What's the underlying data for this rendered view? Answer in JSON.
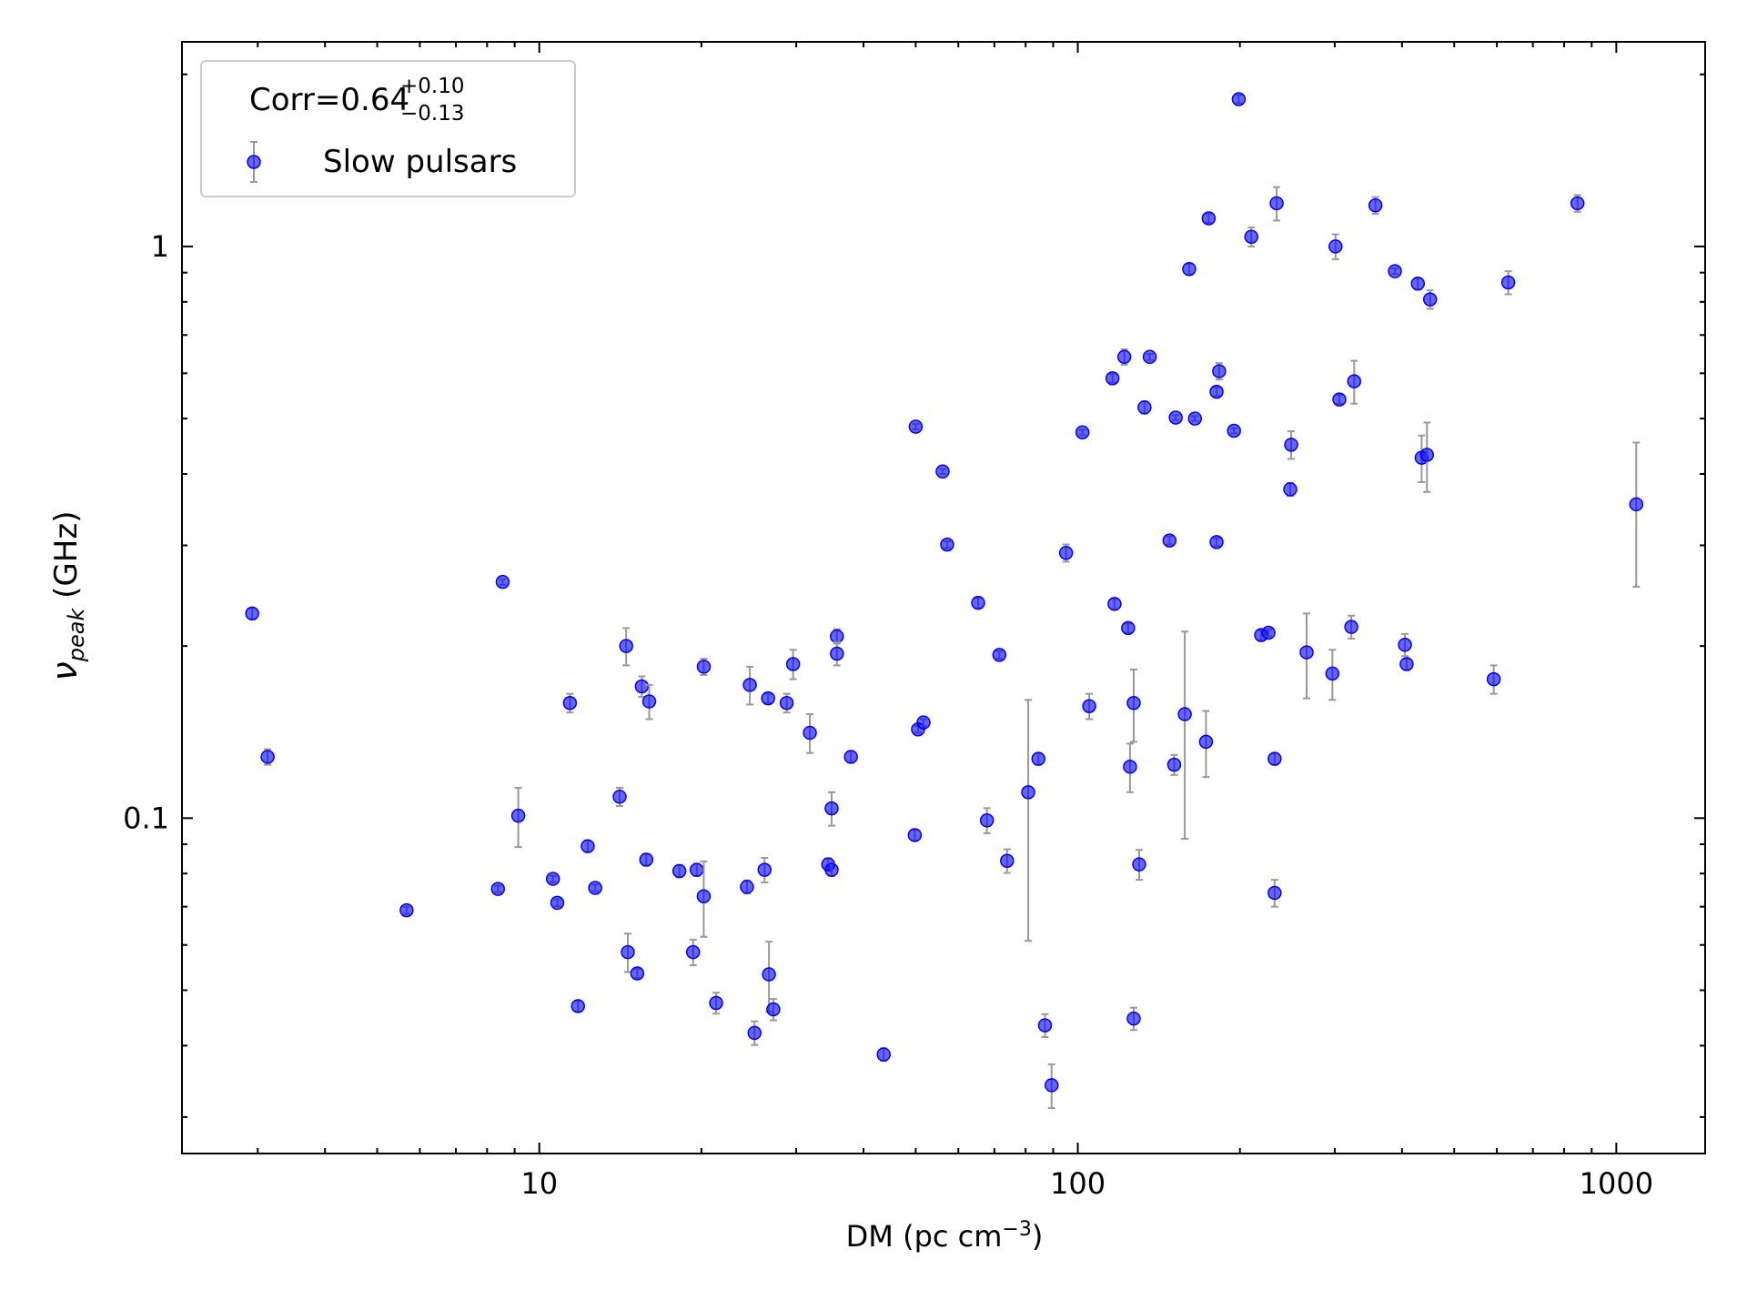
{
  "chart_data": {
    "type": "scatter",
    "xlabel": "DM (pc cm",
    "xlabel_sup": "−3",
    "xlabel_end": ")",
    "ylabel": "ν",
    "ylabel_sub": "peak",
    "ylabel_end": " (GHz)",
    "xscale": "log",
    "yscale": "log",
    "xlim": [
      2.17,
      1462
    ],
    "ylim": [
      0.0259,
      2.28
    ],
    "xticks": [
      10,
      100,
      1000
    ],
    "yticks": [
      0.1,
      1
    ],
    "xminorticks": [
      3,
      4,
      5,
      6,
      7,
      8,
      9,
      20,
      30,
      40,
      50,
      60,
      70,
      80,
      90,
      200,
      300,
      400,
      500,
      600,
      700,
      800,
      900
    ],
    "yminorticks": [
      0.03,
      0.04,
      0.05,
      0.06,
      0.07,
      0.08,
      0.09,
      0.2,
      0.3,
      0.4,
      0.5,
      0.6,
      0.7,
      0.8,
      0.9,
      2
    ],
    "legend": {
      "title": "Corr=0.64",
      "title_sup": "+0.10",
      "title_sub": "−0.13",
      "loc": "upper left"
    },
    "series": [
      {
        "name": "Slow pulsars",
        "color": "#0000ff",
        "errorcolor": "#999999",
        "x": [
          2.93,
          3.13,
          5.67,
          8.38,
          8.55,
          9.14,
          10.6,
          10.8,
          11.4,
          11.8,
          12.3,
          12.7,
          14.1,
          14.5,
          14.6,
          15.2,
          15.5,
          15.8,
          16.0,
          18.2,
          19.3,
          19.6,
          20.2,
          20.2,
          21.3,
          24.3,
          24.6,
          25.1,
          26.2,
          26.6,
          26.7,
          27.2,
          28.8,
          29.6,
          31.8,
          34.4,
          34.9,
          34.9,
          35.7,
          35.7,
          37.9,
          43.6,
          49.8,
          50.0,
          50.5,
          51.7,
          56.1,
          57.2,
          65.3,
          67.8,
          71.5,
          73.9,
          80.9,
          84.5,
          86.9,
          89.4,
          95.1,
          102,
          105,
          116,
          117,
          122,
          124,
          125,
          127,
          127,
          130,
          133,
          136,
          148,
          151,
          152,
          158,
          161,
          165,
          173,
          175,
          181,
          181,
          183,
          195,
          199,
          210,
          219,
          226,
          232,
          232,
          234,
          248,
          249,
          266,
          297,
          301,
          306,
          322,
          326,
          357,
          388,
          405,
          408,
          428,
          435,
          445,
          451,
          592,
          630,
          847,
          1089
        ],
        "values": [
          0.228,
          0.128,
          0.069,
          0.0752,
          0.259,
          0.101,
          0.0783,
          0.0711,
          0.159,
          0.0469,
          0.0893,
          0.0755,
          0.109,
          0.2,
          0.0583,
          0.0535,
          0.17,
          0.0846,
          0.16,
          0.0808,
          0.0583,
          0.0812,
          0.184,
          0.073,
          0.0475,
          0.0758,
          0.171,
          0.0421,
          0.0812,
          0.162,
          0.0533,
          0.0463,
          0.159,
          0.186,
          0.141,
          0.083,
          0.0812,
          0.104,
          0.208,
          0.194,
          0.128,
          0.0386,
          0.0934,
          0.484,
          0.143,
          0.147,
          0.404,
          0.301,
          0.238,
          0.0991,
          0.193,
          0.0842,
          0.111,
          0.127,
          0.0434,
          0.0341,
          0.291,
          0.473,
          0.157,
          0.588,
          0.237,
          0.641,
          0.215,
          0.123,
          0.159,
          0.0446,
          0.083,
          0.523,
          0.641,
          0.306,
          0.124,
          0.502,
          0.152,
          0.913,
          0.5,
          0.136,
          1.12,
          0.557,
          0.304,
          0.605,
          0.476,
          1.81,
          1.04,
          0.209,
          0.211,
          0.127,
          0.074,
          1.19,
          0.376,
          0.45,
          0.195,
          0.179,
          1.0,
          0.54,
          0.216,
          0.581,
          1.18,
          0.905,
          0.201,
          0.186,
          0.861,
          0.427,
          0.432,
          0.808,
          0.175,
          0.865,
          1.19,
          0.354
        ],
        "yerr": [
          0.005,
          0.004,
          0.001,
          0.001,
          0.003,
          0.012,
          0.001,
          0.001,
          0.006,
          0.001,
          0.002,
          0.001,
          0.004,
          0.015,
          0.0045,
          0.001,
          0.007,
          0.002,
          0.011,
          0.002,
          0.003,
          0.002,
          0.006,
          0.011,
          0.002,
          0.002,
          0.013,
          0.002,
          0.004,
          0.003,
          0.0075,
          0.002,
          0.006,
          0.011,
          0.011,
          0.002,
          0.002,
          0.007,
          0.006,
          0.009,
          0.003,
          0.001,
          0.002,
          0.005,
          0.002,
          0.002,
          0.004,
          0.004,
          0.005,
          0.005,
          0.003,
          0.004,
          0.05,
          0.003,
          0.002,
          0.003,
          0.01,
          0.005,
          0.008,
          0.01,
          0.005,
          0.02,
          0.004,
          0.012,
          0.023,
          0.002,
          0.005,
          0.013,
          0.008,
          0.005,
          0.005,
          0.005,
          0.06,
          0.02,
          0.005,
          0.018,
          0.02,
          0.01,
          0.005,
          0.02,
          0.005,
          0.03,
          0.04,
          0.004,
          0.003,
          0.003,
          0.004,
          0.08,
          0.01,
          0.025,
          0.033,
          0.018,
          0.05,
          0.01,
          0.01,
          0.05,
          0.04,
          0.01,
          0.009,
          0.004,
          0.02,
          0.04,
          0.06,
          0.03,
          0.01,
          0.04,
          0.04,
          0.1
        ]
      }
    ]
  }
}
